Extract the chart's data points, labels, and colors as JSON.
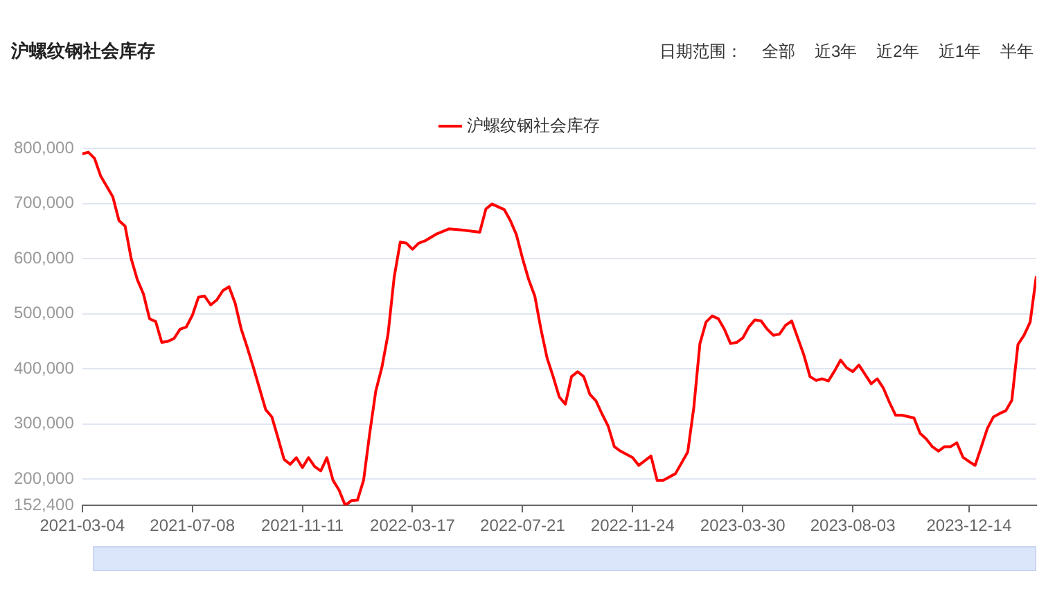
{
  "chart_data": {
    "type": "line",
    "title": "沪螺纹钢社会库存",
    "annotations": [
      "日期范围：",
      "全部",
      "近3年",
      "近2年",
      "近1年",
      "半年"
    ],
    "x": [
      "2021-03-04",
      "2021-03-11",
      "2021-03-18",
      "2021-03-25",
      "2021-04-08",
      "2021-04-15",
      "2021-04-22",
      "2021-04-29",
      "2021-05-06",
      "2021-05-13",
      "2021-05-20",
      "2021-05-27",
      "2021-06-03",
      "2021-06-10",
      "2021-06-17",
      "2021-06-24",
      "2021-07-01",
      "2021-07-08",
      "2021-07-15",
      "2021-07-22",
      "2021-07-29",
      "2021-08-05",
      "2021-08-12",
      "2021-08-19",
      "2021-08-26",
      "2021-09-02",
      "2021-09-09",
      "2021-09-16",
      "2021-09-30",
      "2021-10-07",
      "2021-10-14",
      "2021-10-21",
      "2021-10-28",
      "2021-11-04",
      "2021-11-11",
      "2021-11-18",
      "2021-11-25",
      "2021-12-02",
      "2021-12-09",
      "2021-12-16",
      "2021-12-23",
      "2021-12-30",
      "2022-01-06",
      "2022-01-13",
      "2022-01-20",
      "2022-01-27",
      "2022-02-03",
      "2022-02-10",
      "2022-02-17",
      "2022-02-24",
      "2022-03-03",
      "2022-03-10",
      "2022-03-17",
      "2022-03-24",
      "2022-03-31",
      "2022-04-14",
      "2022-04-28",
      "2022-05-12",
      "2022-06-02",
      "2022-06-09",
      "2022-06-16",
      "2022-06-30",
      "2022-07-07",
      "2022-07-14",
      "2022-07-21",
      "2022-07-28",
      "2022-08-04",
      "2022-08-11",
      "2022-08-18",
      "2022-08-25",
      "2022-09-01",
      "2022-09-08",
      "2022-09-15",
      "2022-09-22",
      "2022-09-29",
      "2022-10-06",
      "2022-10-13",
      "2022-10-20",
      "2022-10-27",
      "2022-11-03",
      "2022-11-10",
      "2022-11-24",
      "2022-12-01",
      "2022-12-15",
      "2022-12-22",
      "2022-12-29",
      "2023-01-12",
      "2023-01-26",
      "2023-02-02",
      "2023-02-09",
      "2023-02-16",
      "2023-02-23",
      "2023-03-02",
      "2023-03-09",
      "2023-03-16",
      "2023-03-23",
      "2023-03-30",
      "2023-04-06",
      "2023-04-13",
      "2023-04-20",
      "2023-04-27",
      "2023-05-04",
      "2023-05-11",
      "2023-05-18",
      "2023-05-25",
      "2023-06-01",
      "2023-06-08",
      "2023-06-15",
      "2023-06-22",
      "2023-06-29",
      "2023-07-06",
      "2023-07-13",
      "2023-07-20",
      "2023-07-27",
      "2023-08-03",
      "2023-08-10",
      "2023-08-17",
      "2023-08-24",
      "2023-08-31",
      "2023-09-07",
      "2023-09-14",
      "2023-09-21",
      "2023-09-28",
      "2023-10-12",
      "2023-10-19",
      "2023-10-26",
      "2023-11-02",
      "2023-11-09",
      "2023-11-16",
      "2023-11-23",
      "2023-11-30",
      "2023-12-07",
      "2023-12-14",
      "2023-12-21",
      "2023-12-28",
      "2024-01-04",
      "2024-01-11",
      "2024-01-18",
      "2024-01-25",
      "2024-02-01",
      "2024-02-08",
      "2024-02-15",
      "2024-02-22",
      "2024-02-29"
    ],
    "series": [
      {
        "name": "沪螺纹钢社会库存",
        "color": "#ff0000",
        "values": [
          790000,
          793000,
          782000,
          750000,
          712000,
          669000,
          659000,
          600000,
          562000,
          536000,
          491000,
          486000,
          448000,
          450000,
          455000,
          472000,
          476000,
          497000,
          530000,
          532000,
          516000,
          525000,
          542000,
          549000,
          519000,
          472000,
          438000,
          402000,
          326000,
          313000,
          275000,
          236000,
          227000,
          239000,
          221000,
          239000,
          223000,
          215000,
          239000,
          198000,
          180000,
          152400,
          161000,
          162000,
          198000,
          283000,
          360000,
          403000,
          463000,
          566000,
          630000,
          628000,
          617000,
          628000,
          632000,
          645000,
          654000,
          652000,
          648000,
          690000,
          699000,
          689000,
          669000,
          643000,
          600000,
          562000,
          532000,
          472000,
          420000,
          386000,
          349000,
          336000,
          386000,
          395000,
          386000,
          354000,
          342000,
          318000,
          296000,
          259000,
          251000,
          239000,
          225000,
          242000,
          198000,
          198000,
          210000,
          249000,
          330000,
          446000,
          485000,
          496000,
          491000,
          472000,
          446000,
          448000,
          456000,
          476000,
          489000,
          487000,
          472000,
          461000,
          463000,
          479000,
          487000,
          456000,
          425000,
          386000,
          379000,
          382000,
          378000,
          396000,
          416000,
          402000,
          395000,
          407000,
          390000,
          373000,
          382000,
          365000,
          339000,
          316000,
          316000,
          311000,
          283000,
          273000,
          259000,
          251000,
          259000,
          259000,
          266000,
          240000,
          232000,
          225000,
          258000,
          292000,
          313000,
          319000,
          324000,
          343000,
          444000,
          461000,
          485000,
          568000
        ]
      }
    ],
    "xlim": [
      "2021-03-04",
      "2024-02-29"
    ],
    "xticks": [
      "2021-03-04",
      "2021-07-08",
      "2021-11-11",
      "2022-03-17",
      "2022-07-21",
      "2022-11-24",
      "2023-03-30",
      "2023-08-03",
      "2023-12-14"
    ],
    "ylim": [
      152400,
      800000
    ],
    "yticks": [
      {
        "value": 152400,
        "label": "152,400"
      },
      {
        "value": 200000,
        "label": "200,000"
      },
      {
        "value": 300000,
        "label": "300,000"
      },
      {
        "value": 400000,
        "label": "400,000"
      },
      {
        "value": 500000,
        "label": "500,000"
      },
      {
        "value": 600000,
        "label": "600,000"
      },
      {
        "value": 700000,
        "label": "700,000"
      },
      {
        "value": 800000,
        "label": "800,000"
      }
    ],
    "grid": "y",
    "legend": "top",
    "line_style": "solid"
  }
}
